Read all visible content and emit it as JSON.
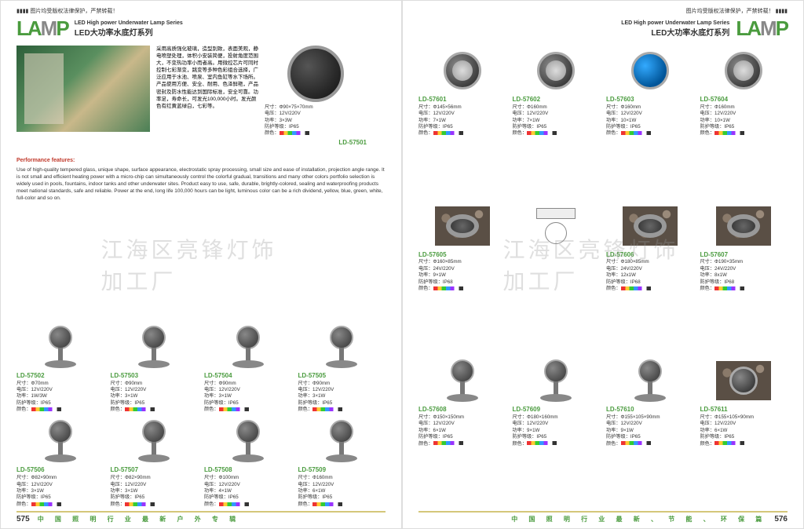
{
  "topbar_text": "图片均受版权法律保护，严禁转载！",
  "logo_text": "LAMP",
  "header_en": "LED High power Underwater Lamp Series",
  "header_cn": "LED大功率水底灯系列",
  "watermark": "江海区亮锋灯饰加工厂",
  "intro_cn": "采用高质强化玻璃，造型别致，表面美观，静电喷塑处理，体积小安装简便，投射角度范围大，不变热功率小而者高。用微控芯片可同时控制七彩渐变，跳变等多种色彩组合选择，广泛应用于水池、喷泉、室内鱼缸等水下场所。产品使用方便、安全、耐用、色泽鲜艳，产品密封及防水性能达到国际标准，安全可靠。功率足，寿命长，可发光100,000小时。发光颜色有红黄蓝绿白，七彩等。",
  "perf_title": "Performance features:",
  "intro_en": "Use of high-quality tempered glass, unique shape, surface appearance, electrostatic spray processing, small size and ease of installation, projection angle range. It is not small and efficient heating power with a micro-chip can simultaneously control the colorful gradual, transitions and many other colors portfolio selection is widely used in pools, fountains, indoor tanks and other underwater sites. Product easy to use, safe, durable, brightly-colored, sealing and waterproofing products meet national standards, safe and reliable. Power at the end, long life 100,000 hours can be light, luminous color can be a rich dividend, yellow, blue, green, white, full-color and so on.",
  "spec_labels": {
    "size": "尺寸：",
    "voltage": "电压：",
    "power": "功率：",
    "ip": "防护等级：",
    "color": "颜色："
  },
  "feature_product": {
    "model": "LD-57501",
    "size": "Φ90×75×70mm",
    "voltage": "12V/220V",
    "power": "3×3W",
    "ip": "IP65"
  },
  "left_products": [
    {
      "model": "LD-57502",
      "size": "Φ70mm",
      "voltage": "12V/220V",
      "power": "1W/3W",
      "ip": "IP65",
      "imgtype": "stand"
    },
    {
      "model": "LD-57503",
      "size": "Φ90mm",
      "voltage": "12V/220V",
      "power": "3×1W",
      "ip": "IP65",
      "imgtype": "stand"
    },
    {
      "model": "LD-57504",
      "size": "Φ90mm",
      "voltage": "12V/220V",
      "power": "3×1W",
      "ip": "IP65",
      "imgtype": "stand"
    },
    {
      "model": "LD-57505",
      "size": "Φ90mm",
      "voltage": "12V/220V",
      "power": "3×1W",
      "ip": "IP65",
      "imgtype": "stand"
    },
    {
      "model": "LD-57506",
      "size": "Φ82×90mm",
      "voltage": "12V/220V",
      "power": "3×1W",
      "ip": "IP65",
      "imgtype": "stand"
    },
    {
      "model": "LD-57507",
      "size": "Φ82×90mm",
      "voltage": "12V/220V",
      "power": "3×1W",
      "ip": "IP65",
      "imgtype": "stand"
    },
    {
      "model": "LD-57508",
      "size": "Φ100mm",
      "voltage": "12V/220V",
      "power": "4×1W",
      "ip": "IP65",
      "imgtype": "stand"
    },
    {
      "model": "LD-57509",
      "size": "Φ160mm",
      "voltage": "12V/220V",
      "power": "6×1W",
      "ip": "IP65",
      "imgtype": "stand"
    }
  ],
  "right_products": [
    {
      "model": "LD-57601",
      "size": "Φ145×56mm",
      "voltage": "12V/220V",
      "power": "7×1W",
      "ip": "IP65",
      "imgtype": "round-led"
    },
    {
      "model": "LD-57602",
      "size": "Φ160mm",
      "voltage": "12V/220V",
      "power": "7×1W",
      "ip": "IP65",
      "imgtype": "round-led"
    },
    {
      "model": "LD-57603",
      "size": "Φ160mm",
      "voltage": "12V/220V",
      "power": "10×1W",
      "ip": "IP65",
      "imgtype": "round-blue"
    },
    {
      "model": "LD-57604",
      "size": "Φ160mm",
      "voltage": "12V/220V",
      "power": "10×1W",
      "ip": "IP65",
      "imgtype": "round-led"
    },
    {
      "model": "LD-57605",
      "size": "Φ160×85mm",
      "voltage": "24V/220V",
      "power": "9×1W",
      "ip": "IP68",
      "imgtype": "pebbles-ring"
    },
    {
      "model": "",
      "size": "",
      "voltage": "",
      "power": "",
      "ip": "",
      "imgtype": "diagram"
    },
    {
      "model": "LD-57606",
      "size": "Φ180×85mm",
      "voltage": "24V/220V",
      "power": "12x1W",
      "ip": "IP68",
      "imgtype": "pebbles-ring"
    },
    {
      "model": "LD-57607",
      "size": "Φ190×35mm",
      "voltage": "24V/220V",
      "power": "8x1W",
      "ip": "IP68",
      "imgtype": "pebbles-ring"
    },
    {
      "model": "LD-57608",
      "size": "Φ150×150mm",
      "voltage": "12V/220V",
      "power": "6×1W",
      "ip": "IP65",
      "imgtype": "stand"
    },
    {
      "model": "LD-57609",
      "size": "Φ180×160mm",
      "voltage": "12V/220V",
      "power": "9×1W",
      "ip": "IP65",
      "imgtype": "stand"
    },
    {
      "model": "LD-57610",
      "size": "Φ155×105×90mm",
      "voltage": "12V/220V",
      "power": "9×1W",
      "ip": "IP65",
      "imgtype": "stand"
    },
    {
      "model": "LD-57611",
      "size": "Φ155×105×90mm",
      "voltage": "12V/220V",
      "power": "6×1W",
      "ip": "IP65",
      "imgtype": "pebbles-round"
    }
  ],
  "footer_left": "中 国 照 明 行 业 最 新 户 外 专 辑",
  "footer_right": "中 国 照 明 行 业 最 新 、 节 能 、 环 保 篇",
  "page_left": "575",
  "page_right": "576"
}
